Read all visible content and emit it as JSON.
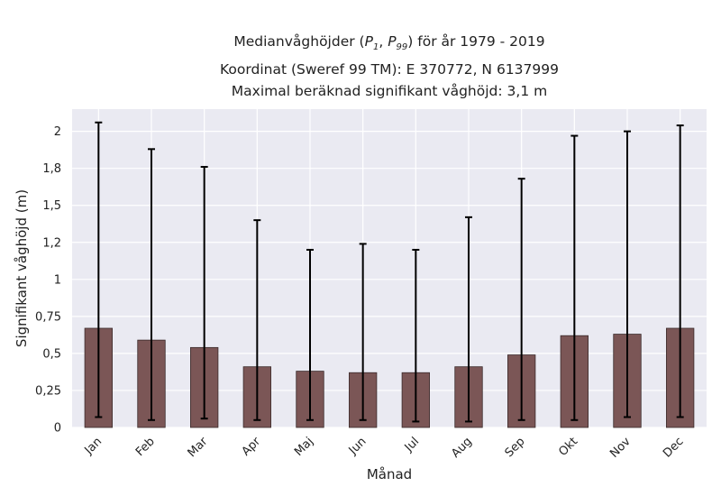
{
  "chart_data": {
    "type": "bar",
    "title_lines": [
      "Medianvåghöjder (P1, P99) för år 1979 - 2019",
      "Koordinat (Sweref 99 TM): E 370772, N 6137999",
      "Maximal beräknad signifikant våghöjd: 3,1 m"
    ],
    "title_parts": {
      "prefix": "Medianvåghöjder (",
      "p1": "P",
      "p1_sub": "1",
      "sep": ", ",
      "p99": "P",
      "p99_sub": "99",
      "suffix": ") för år 1979 - 2019"
    },
    "xlabel": "Månad",
    "ylabel": "Signifikant våghöjd (m)",
    "categories": [
      "Jan",
      "Feb",
      "Mar",
      "Apr",
      "Maj",
      "Jun",
      "Jul",
      "Aug",
      "Sep",
      "Okt",
      "Nov",
      "Dec"
    ],
    "series": [
      {
        "values": [
          0.67,
          0.59,
          0.54,
          0.41,
          0.38,
          0.37,
          0.37,
          0.41,
          0.49,
          0.62,
          0.63,
          0.67
        ],
        "p1": [
          0.07,
          0.05,
          0.06,
          0.05,
          0.05,
          0.05,
          0.04,
          0.04,
          0.05,
          0.05,
          0.07,
          0.07
        ],
        "p99": [
          2.06,
          1.88,
          1.76,
          1.4,
          1.2,
          1.24,
          1.2,
          1.42,
          1.68,
          1.97,
          2.0,
          2.04
        ]
      }
    ],
    "yticks": [
      {
        "value": 0,
        "label": "0"
      },
      {
        "value": 0.25,
        "label": "0,25"
      },
      {
        "value": 0.5,
        "label": "0,5"
      },
      {
        "value": 0.75,
        "label": "0,75"
      },
      {
        "value": 1.0,
        "label": "1"
      },
      {
        "value": 1.25,
        "label": "1,2"
      },
      {
        "value": 1.5,
        "label": "1,5"
      },
      {
        "value": 1.75,
        "label": "1,8"
      },
      {
        "value": 2.0,
        "label": "2"
      }
    ],
    "ylim": [
      0,
      2.15
    ],
    "grid": true,
    "colors": {
      "bar_fill": "#7b5656",
      "bar_edge": "#3a2a2a",
      "errorbar": "#000000",
      "plot_background": "#eaeaf2",
      "grid": "#ffffff"
    }
  }
}
